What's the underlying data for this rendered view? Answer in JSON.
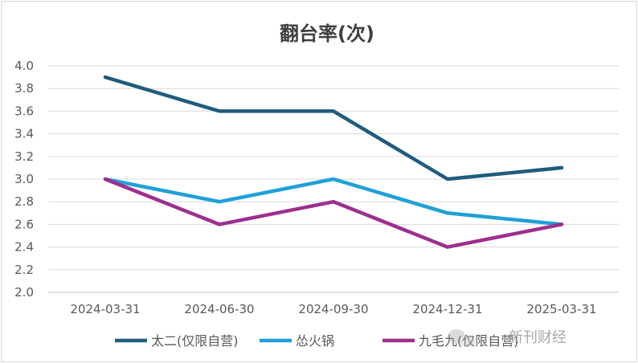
{
  "chart_data": {
    "type": "line",
    "title": "翻台率(次)",
    "categories": [
      "2024-03-31",
      "2024-06-30",
      "2024-09-30",
      "2024-12-31",
      "2025-03-31"
    ],
    "ylim": [
      2.0,
      4.0
    ],
    "yticks": [
      "2.0",
      "2.2",
      "2.4",
      "2.6",
      "2.8",
      "3.0",
      "3.2",
      "3.4",
      "3.6",
      "3.8",
      "4.0"
    ],
    "grid": true,
    "legend_position": "bottom",
    "series": [
      {
        "name": "太二(仅限自营)",
        "color": "#1f5c7e",
        "values": [
          3.9,
          3.6,
          3.6,
          3.0,
          3.1
        ]
      },
      {
        "name": "怂火锅",
        "color": "#1fa0d8",
        "values": [
          3.0,
          2.8,
          3.0,
          2.7,
          2.6
        ]
      },
      {
        "name": "九毛九(仅限自营)",
        "color": "#9e2f8e",
        "values": [
          3.0,
          2.6,
          2.8,
          2.4,
          2.6
        ]
      }
    ]
  },
  "watermark": {
    "text": "新刊财经",
    "icon": "wechat-icon"
  }
}
